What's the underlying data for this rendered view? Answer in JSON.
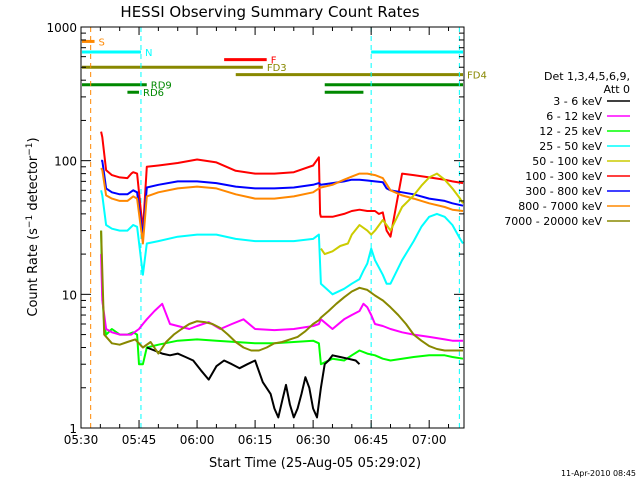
{
  "chart_data": {
    "type": "line",
    "title": "HESSI Observing Summary Count Rates",
    "xlabel": "Start Time (25-Aug-05 05:29:02)",
    "ylabel": "Count Rate (s⁻¹ detector⁻¹)",
    "ylabel_main": "Count Rate (s",
    "ylabel_sup1": "−1",
    "ylabel_mid": " detector",
    "ylabel_sup2": "−1",
    "ylabel_end": ")",
    "x_unit": "minutes since 05:30 UT",
    "xlim": [
      0,
      99
    ],
    "ylim": [
      1,
      1000
    ],
    "y_scale": "log",
    "grid": false,
    "x_ticks": [
      {
        "value": 0,
        "label": "05:30"
      },
      {
        "value": 15,
        "label": "05:45"
      },
      {
        "value": 30,
        "label": "06:00"
      },
      {
        "value": 45,
        "label": "06:15"
      },
      {
        "value": 60,
        "label": "06:30"
      },
      {
        "value": 75,
        "label": "06:45"
      },
      {
        "value": 90,
        "label": "07:00"
      }
    ],
    "y_ticks": [
      {
        "value": 1,
        "label": "1"
      },
      {
        "value": 10,
        "label": "10"
      },
      {
        "value": 100,
        "label": "100"
      },
      {
        "value": 1000,
        "label": "1000"
      }
    ],
    "legend": {
      "placement": "right",
      "header": [
        "Det 1,3,4,5,6,9,",
        "Att 0"
      ],
      "entries": [
        {
          "label": "3 - 6 keV",
          "color": "#000000"
        },
        {
          "label": "6 - 12 keV",
          "color": "#ff00ff"
        },
        {
          "label": "12 - 25 keV",
          "color": "#00ff00"
        },
        {
          "label": "25 - 50 keV",
          "color": "#00ffff"
        },
        {
          "label": "50 - 100 keV",
          "color": "#cccc00"
        },
        {
          "label": "100 - 300 keV",
          "color": "#ff0000"
        },
        {
          "label": "300 - 800 keV",
          "color": "#0000ff"
        },
        {
          "label": "800 - 7000 keV",
          "color": "#ff8800"
        },
        {
          "label": "7000 - 20000 keV",
          "color": "#888800"
        }
      ]
    },
    "flags": [
      {
        "label": "S",
        "color": "#ff8800",
        "y": 780,
        "segments": [
          [
            -5,
            3.5
          ]
        ]
      },
      {
        "label": "N",
        "color": "#00ffff",
        "y": 650,
        "segments": [
          [
            -5,
            15.5
          ],
          [
            75,
            99
          ]
        ]
      },
      {
        "label": "F",
        "color": "#ff0000",
        "y": 570,
        "segments": [
          [
            37,
            48
          ]
        ]
      },
      {
        "label": "FD3",
        "color": "#888800",
        "y": 500,
        "segments": [
          [
            -5,
            47
          ]
        ]
      },
      {
        "label": "FD4",
        "color": "#888800",
        "y": 440,
        "segments": [
          [
            40,
            99
          ]
        ]
      },
      {
        "label": "RD9",
        "color": "#008800",
        "y": 370,
        "segments": [
          [
            -5,
            17
          ]
        ]
      },
      {
        "label": "RD6",
        "color": "#008800",
        "y": 325,
        "segments": [
          [
            12,
            15
          ]
        ]
      },
      {
        "label": "",
        "color": "#008800",
        "y": 370,
        "segments": [
          [
            63,
            99
          ]
        ]
      },
      {
        "label": "",
        "color": "#008800",
        "y": 325,
        "segments": [
          [
            63,
            73
          ]
        ]
      }
    ],
    "vlines": [
      {
        "x": 2.5,
        "color": "#ff8800"
      },
      {
        "x": 15.5,
        "color": "#00ffff"
      },
      {
        "x": 75,
        "color": "#00ffff"
      },
      {
        "x": 97.8,
        "color": "#00ffff"
      }
    ],
    "series": [
      {
        "name": "100 - 300 keV",
        "color": "#ff0000",
        "x": [
          5.2,
          5.5,
          6.5,
          8,
          10,
          12,
          13,
          13.5,
          14.5,
          16,
          17,
          20,
          25,
          30,
          35,
          40,
          45,
          50,
          55,
          60,
          61.5,
          61.8,
          62,
          65,
          68,
          70,
          72,
          74,
          76,
          77,
          78,
          79,
          80,
          83,
          86,
          90,
          94,
          96,
          99
        ],
        "y": [
          165,
          150,
          85,
          78,
          75,
          74,
          80,
          82,
          80,
          30,
          90,
          92,
          96,
          102,
          97,
          84,
          80,
          80,
          82,
          92,
          106,
          40,
          38,
          38,
          40,
          42,
          43,
          42,
          42,
          40,
          41,
          30,
          27,
          80,
          78,
          75,
          72,
          70,
          68
        ]
      },
      {
        "name": "300 - 800 keV",
        "color": "#0000ff",
        "x": [
          5.2,
          5.5,
          6.5,
          8,
          10,
          12,
          13.5,
          14.5,
          16,
          17,
          20,
          25,
          30,
          35,
          40,
          45,
          50,
          55,
          60,
          61.5,
          62,
          65,
          68,
          70,
          72,
          74,
          76,
          78,
          79,
          80,
          83,
          86,
          90,
          94,
          96,
          99
        ],
        "y": [
          100,
          100,
          62,
          58,
          56,
          56,
          60,
          58,
          27,
          63,
          66,
          70,
          70,
          68,
          64,
          62,
          62,
          63,
          66,
          68,
          66,
          68,
          70,
          72,
          72,
          71,
          70,
          69,
          62,
          60,
          58,
          56,
          52,
          50,
          48,
          46
        ]
      },
      {
        "name": "800 - 7000 keV",
        "color": "#ff8800",
        "x": [
          5.2,
          5.5,
          6.5,
          8,
          10,
          12,
          13.5,
          14.5,
          16,
          17,
          20,
          25,
          30,
          35,
          40,
          45,
          50,
          55,
          60,
          61.5,
          62,
          65,
          68,
          70,
          72,
          74,
          76,
          78,
          80,
          83,
          86,
          90,
          94,
          96,
          99
        ],
        "y": [
          88,
          85,
          55,
          52,
          50,
          50,
          54,
          52,
          24,
          54,
          58,
          62,
          64,
          62,
          56,
          52,
          52,
          54,
          58,
          62,
          63,
          66,
          72,
          76,
          80,
          80,
          78,
          74,
          60,
          55,
          52,
          48,
          45,
          43,
          42
        ]
      },
      {
        "name": "50 - 100 keV",
        "color": "#cccc00",
        "x": [
          62,
          63,
          65,
          67,
          69,
          70,
          72,
          74,
          75,
          76,
          78,
          79,
          80,
          83,
          86,
          88,
          90,
          92,
          94,
          96,
          98,
          99
        ],
        "y": [
          22,
          20,
          21,
          23,
          24,
          28,
          33,
          30,
          28,
          30,
          36,
          33,
          30,
          45,
          55,
          65,
          75,
          80,
          72,
          62,
          52,
          48
        ]
      },
      {
        "name": "25 - 50 keV",
        "color": "#00ffff",
        "x": [
          5.2,
          5.5,
          6.5,
          8,
          10,
          12,
          13.5,
          14.5,
          16,
          17,
          20,
          25,
          30,
          35,
          40,
          45,
          50,
          55,
          60,
          61.5,
          62,
          65,
          68,
          70,
          72,
          73,
          74,
          75,
          76,
          78,
          79,
          80,
          83,
          86,
          88,
          90,
          92,
          94,
          96,
          98,
          99
        ],
        "y": [
          60,
          55,
          33,
          31,
          30,
          30,
          33,
          32,
          14,
          24,
          25,
          27,
          28,
          28,
          26,
          25,
          25,
          25,
          26,
          28,
          12,
          10,
          11,
          12,
          13,
          15,
          17,
          22,
          18,
          14,
          12,
          12,
          18,
          25,
          32,
          38,
          40,
          38,
          33,
          26,
          24
        ]
      },
      {
        "name": "12 - 25 keV",
        "color": "#00ff00",
        "x": [
          5.2,
          5.5,
          6,
          6.5,
          8,
          10,
          12,
          13.5,
          14.5,
          15,
          16,
          17,
          20,
          25,
          30,
          35,
          40,
          45,
          50,
          55,
          60,
          61.5,
          62,
          65,
          68,
          70,
          72,
          74,
          76,
          78,
          80,
          83,
          86,
          90,
          94,
          96,
          99
        ],
        "y": [
          30,
          10,
          6,
          5,
          5.5,
          5,
          5,
          5.2,
          5,
          3,
          3,
          4,
          4.2,
          4.5,
          4.6,
          4.5,
          4.4,
          4.3,
          4.3,
          4.4,
          4.5,
          4.3,
          3,
          3.3,
          3.2,
          3.5,
          3.8,
          3.6,
          3.5,
          3.3,
          3.2,
          3.3,
          3.4,
          3.5,
          3.5,
          3.4,
          3.3
        ]
      },
      {
        "name": "6 - 12 keV",
        "color": "#ff00ff",
        "x": [
          5.2,
          5.5,
          6.5,
          8,
          10,
          13,
          15,
          16,
          17,
          19,
          21,
          23,
          25,
          28,
          30,
          33,
          36,
          39,
          42,
          45,
          50,
          55,
          60,
          61.5,
          62,
          65,
          68,
          70,
          72,
          73,
          74,
          75,
          76,
          78,
          80,
          83,
          86,
          90,
          94,
          96,
          99
        ],
        "y": [
          20,
          9,
          5.5,
          5.2,
          5,
          5,
          5.5,
          6,
          6.5,
          7.5,
          8.5,
          6,
          5.8,
          5.5,
          5.8,
          6.2,
          5.5,
          6,
          6.5,
          5.5,
          5.4,
          5.5,
          5.8,
          6,
          6.5,
          5.5,
          6.5,
          7,
          7.5,
          8.5,
          8,
          7,
          6,
          5.8,
          5.5,
          5.2,
          5,
          4.8,
          4.6,
          4.5,
          4.5
        ]
      },
      {
        "name": "3 - 6 keV",
        "color": "#000000",
        "x": [
          17,
          19,
          21,
          23,
          25,
          27,
          29,
          31,
          33,
          35,
          37,
          39,
          41,
          43,
          45,
          47,
          49,
          50,
          51,
          52,
          53,
          54,
          55,
          56,
          57,
          58,
          59,
          60,
          61,
          62,
          63,
          64,
          65,
          67,
          69,
          71,
          72
        ],
        "y": [
          4,
          3.8,
          3.6,
          3.5,
          3.6,
          3.4,
          3.2,
          2.7,
          2.3,
          2.9,
          3.2,
          3.0,
          2.8,
          3.0,
          3.2,
          2.2,
          1.8,
          1.4,
          1.2,
          1.6,
          2.1,
          1.5,
          1.2,
          1.4,
          1.8,
          2.4,
          2.0,
          1.4,
          1.2,
          2.0,
          3.0,
          3.2,
          3.5,
          3.4,
          3.3,
          3.2,
          3.0
        ]
      },
      {
        "name": "7000 - 20000 keV",
        "color": "#888800",
        "x": [
          5.2,
          6,
          8,
          10,
          12,
          14,
          16,
          18,
          20,
          22,
          24,
          26,
          28,
          30,
          32,
          34,
          36,
          38,
          40,
          42,
          44,
          46,
          48,
          50,
          52,
          54,
          56,
          58,
          60,
          61.5,
          62,
          64,
          66,
          68,
          70,
          72,
          74,
          76,
          78,
          80,
          82,
          84,
          86,
          88,
          90,
          92,
          94,
          96,
          99
        ],
        "y": [
          30,
          5,
          4.3,
          4.2,
          4.4,
          4.6,
          4.0,
          4.4,
          3.6,
          4.4,
          5.0,
          5.5,
          6.0,
          6.3,
          6.2,
          6.0,
          5.6,
          5.0,
          4.4,
          4.0,
          3.8,
          3.8,
          4.0,
          4.3,
          4.4,
          4.6,
          4.8,
          5.3,
          6.0,
          6.4,
          6.7,
          7.5,
          8.5,
          9.5,
          10.5,
          11.2,
          10.8,
          9.8,
          9.0,
          8.0,
          7.0,
          6.0,
          5.0,
          4.5,
          4.1,
          3.9,
          3.8,
          3.8,
          3.8
        ]
      }
    ]
  },
  "timestamp": "11-Apr-2010 08:45"
}
